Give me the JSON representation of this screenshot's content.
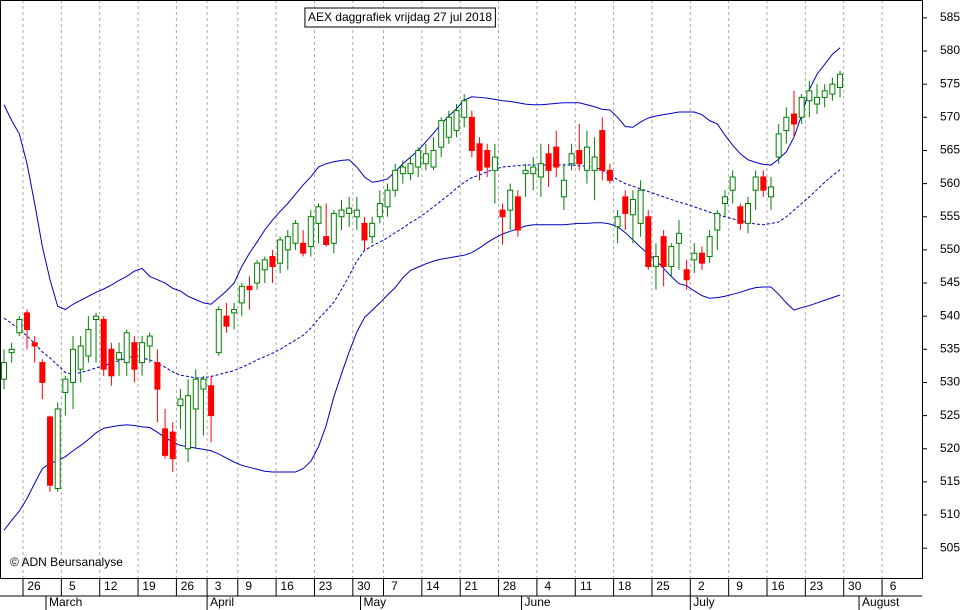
{
  "chart_data": {
    "type": "candlestick",
    "title": "AEX daggrafiek vrijdag 27 jul 2018",
    "copyright": "© ADN Beursanalyse",
    "categories": [
      null,
      null,
      null,
      "26",
      null,
      null,
      null,
      null,
      "5",
      null,
      null,
      null,
      null,
      "12",
      null,
      null,
      null,
      null,
      "19",
      null,
      null,
      null,
      null,
      "26",
      null,
      null,
      null,
      "3",
      null,
      null,
      null,
      "9",
      null,
      null,
      null,
      null,
      "16",
      null,
      null,
      null,
      null,
      "23",
      null,
      null,
      null,
      null,
      "30",
      null,
      null,
      null,
      "7",
      null,
      null,
      null,
      null,
      "14",
      null,
      null,
      null,
      null,
      "21",
      null,
      null,
      null,
      null,
      "28",
      null,
      null,
      null,
      null,
      "4",
      null,
      null,
      null,
      null,
      "11",
      null,
      null,
      null,
      null,
      "18",
      null,
      null,
      null,
      null,
      "25",
      null,
      null,
      null,
      null,
      "2",
      null,
      null,
      null,
      null,
      "9",
      null,
      null,
      null,
      null,
      "16",
      null,
      null,
      null,
      null,
      "23",
      null,
      null,
      null,
      null,
      "30",
      null,
      null,
      null,
      null,
      "6",
      null,
      null,
      null,
      null
    ],
    "months": [
      "March",
      "April",
      "May",
      "June",
      "July",
      "August"
    ],
    "open": [
      530.5,
      534.5,
      537.5,
      540.5,
      536,
      533,
      524.8,
      514,
      528.5,
      530,
      532,
      534,
      539.5,
      539.5,
      535,
      533.5,
      533,
      536,
      533,
      535.5,
      533,
      523,
      522.5,
      526.5,
      520,
      526,
      529,
      529.5,
      534.5,
      540,
      540.5,
      542,
      544.5,
      545,
      547,
      549,
      548,
      550,
      551,
      551,
      550.5,
      554,
      552,
      551,
      555,
      555.5,
      555,
      554,
      552,
      555,
      556.5,
      559,
      561.5,
      561.5,
      562.5,
      563,
      562.5,
      565.5,
      567,
      568,
      570,
      570,
      566,
      565,
      562,
      556,
      556,
      558,
      561.5,
      561.5,
      561,
      564.5,
      565.5,
      558,
      563,
      565,
      562,
      562,
      568,
      562,
      553.5,
      558,
      555.3,
      554,
      555,
      547.5,
      552,
      547.5,
      551,
      547,
      548.5,
      549.5,
      549,
      553,
      557,
      559,
      556.5,
      554,
      559,
      561,
      558,
      564,
      568,
      570.5,
      570,
      572.5,
      572,
      573,
      573.5,
      574.5,
      null,
      null,
      null,
      null,
      null,
      null,
      null,
      null,
      null,
      null
    ],
    "high": [
      535,
      536,
      540,
      541,
      537,
      533.5,
      525,
      527,
      531,
      537,
      537,
      540,
      540.5,
      540,
      536,
      536,
      538,
      537,
      537,
      537.5,
      535,
      526,
      524,
      529,
      530.5,
      532,
      531,
      531,
      541.5,
      542,
      542,
      545,
      546,
      548.5,
      549,
      550,
      552,
      553,
      554.5,
      553,
      556,
      557,
      557,
      556,
      557.5,
      558,
      558,
      555,
      555,
      559,
      560,
      563,
      563.5,
      564,
      565.5,
      566,
      567,
      570,
      571,
      572,
      573.5,
      571,
      567,
      566,
      566,
      557,
      560,
      559,
      563,
      564,
      566,
      566,
      568,
      563,
      566,
      569,
      568,
      567,
      570,
      563,
      556,
      559,
      559,
      560.5,
      556,
      551,
      553,
      551,
      554.5,
      548.5,
      551,
      550.5,
      553,
      556,
      559,
      562,
      557,
      558,
      562,
      562,
      561,
      569,
      571.5,
      574,
      573.5,
      575.5,
      575,
      575,
      576,
      577,
      null,
      null,
      null,
      null,
      null,
      null,
      null,
      null,
      null,
      null
    ],
    "low": [
      529,
      533,
      537,
      535,
      533,
      527.5,
      513.5,
      513.5,
      525,
      526,
      530,
      533,
      533,
      531,
      529.5,
      531,
      531,
      530,
      531,
      533,
      524,
      518.5,
      516.5,
      523,
      518,
      520,
      522,
      521,
      534,
      537.5,
      538,
      540,
      541,
      544,
      545,
      545,
      546.5,
      547,
      550,
      549,
      549,
      551,
      550.5,
      549.5,
      553,
      553.5,
      553,
      550,
      551,
      554,
      555,
      558,
      560,
      560.5,
      561,
      562,
      562,
      564,
      566,
      567,
      568.5,
      564,
      560.5,
      561,
      557,
      550.8,
      553,
      552,
      558,
      559,
      558,
      559.5,
      561,
      556,
      562,
      562,
      560,
      557.5,
      560.5,
      560,
      551,
      553,
      551,
      552,
      547,
      544,
      544.5,
      546,
      547,
      544,
      546.5,
      547,
      548,
      550,
      555,
      557,
      553,
      552.5,
      556,
      558,
      556,
      563,
      566,
      567,
      569,
      570,
      570.5,
      571.5,
      572.5,
      573,
      null,
      null,
      null,
      null,
      null,
      null,
      null,
      null,
      null,
      null
    ],
    "close": [
      533,
      535,
      539.5,
      538,
      535.5,
      530,
      514.5,
      526,
      530.5,
      535,
      535.5,
      538,
      540,
      532,
      531,
      534.5,
      537.5,
      532,
      536,
      537,
      529,
      519,
      518.5,
      527.5,
      528,
      530.5,
      530.5,
      525,
      541,
      538.5,
      541,
      544.5,
      544,
      548,
      548.5,
      547.5,
      551.5,
      552,
      554,
      549.5,
      555,
      556.5,
      550.8,
      555.5,
      556,
      556.3,
      556,
      551.5,
      554,
      557,
      559,
      562,
      562.5,
      563,
      565,
      564.5,
      565,
      569.5,
      570,
      571,
      572.5,
      565,
      562,
      562.5,
      564,
      555,
      559,
      553,
      562,
      562.5,
      563,
      562,
      562.5,
      560.5,
      564.5,
      563,
      565.5,
      564,
      562,
      560.5,
      555,
      555.5,
      557.6,
      559,
      547.5,
      549,
      547.5,
      550.5,
      552.5,
      545.5,
      549.5,
      548,
      552,
      555.5,
      558,
      561,
      554,
      557,
      561,
      559,
      559.5,
      567.5,
      570,
      569,
      573,
      574,
      573,
      574,
      575,
      576.5,
      null,
      null,
      null,
      null,
      null,
      null,
      null,
      null,
      null,
      null
    ],
    "up_color": "#008000",
    "down_color": "#ff0000",
    "bands": {
      "color": "#0000c0",
      "upper": [
        571.9,
        569.5,
        567.5,
        563,
        557,
        550.5,
        545.5,
        541.5,
        541,
        541.8,
        542.4,
        543,
        543.6,
        544.1,
        544.7,
        545.4,
        546,
        546.8,
        547.2,
        546,
        545.5,
        545,
        544.2,
        543.8,
        543,
        542.5,
        542,
        541.8,
        542.8,
        543.8,
        545,
        547.5,
        549.5,
        551.2,
        553,
        554.5,
        555.8,
        557,
        558.4,
        559.8,
        561,
        562.5,
        563,
        563.3,
        563.5,
        563.6,
        562.5,
        561,
        560.2,
        560.4,
        560.7,
        561.8,
        563,
        564,
        565,
        566.3,
        567.6,
        569,
        570.2,
        571.3,
        572.6,
        573.1,
        573,
        572.9,
        572.7,
        572.5,
        572.4,
        572.2,
        572,
        571.9,
        571.9,
        572,
        572.1,
        572.2,
        572.2,
        572.2,
        571.9,
        571.6,
        571.2,
        571.1,
        570,
        568.6,
        568.5,
        569.3,
        569.9,
        570.2,
        570.4,
        570.6,
        570.8,
        570.8,
        570.8,
        570.4,
        569.5,
        569,
        567.3,
        565.8,
        564.5,
        563.6,
        563.2,
        562.9,
        562.8,
        563.7,
        564.8,
        567,
        570.3,
        574.2,
        576.5,
        578,
        579.5,
        580.5,
        null,
        null,
        null,
        null,
        null,
        null,
        null,
        null,
        null,
        null
      ],
      "middle": [
        539.7,
        538.9,
        538,
        537,
        535.9,
        534.6,
        533.7,
        532.6,
        531.5,
        531.2,
        531.5,
        531.8,
        532.2,
        532.5,
        532.9,
        533.3,
        533.7,
        534,
        533.7,
        533.4,
        532.9,
        532.3,
        531.6,
        531.1,
        530.9,
        530.7,
        530.7,
        530.9,
        531.2,
        531.5,
        531.8,
        532.3,
        532.8,
        533.4,
        533.9,
        534.4,
        535,
        535.7,
        536.4,
        537.1,
        538.2,
        539.6,
        540.8,
        542.1,
        544,
        546.1,
        548.3,
        549.9,
        550.6,
        551.2,
        551.8,
        552.6,
        553.3,
        554.1,
        554.8,
        555.6,
        556.5,
        557.4,
        558.3,
        559.3,
        560.2,
        560.9,
        561.3,
        561.8,
        562.2,
        562.5,
        562.6,
        562.7,
        562.8,
        562.8,
        562.8,
        562.8,
        562.8,
        562.8,
        562.8,
        562.7,
        562.6,
        562.5,
        562,
        561.3,
        560.6,
        560,
        559.6,
        559.2,
        558.8,
        558.4,
        558,
        557.6,
        557.2,
        556.9,
        556.5,
        556.1,
        555.7,
        555.3,
        555,
        554.7,
        554.4,
        554.1,
        553.9,
        553.8,
        554,
        554.2,
        555,
        556,
        557,
        558,
        559.1,
        560.2,
        561.2,
        562.1,
        null,
        null,
        null,
        null,
        null,
        null,
        null,
        null,
        null,
        null
      ],
      "lower": [
        507.7,
        509.2,
        510.6,
        512.5,
        514.8,
        517,
        517.8,
        518.2,
        518.8,
        519.7,
        520.5,
        521.4,
        522.4,
        523.1,
        523.3,
        523.5,
        523.6,
        523.5,
        523.3,
        523.2,
        522.5,
        521.7,
        521,
        520.5,
        520.3,
        520.1,
        519.9,
        519.7,
        519.2,
        518.6,
        518,
        517.5,
        517.2,
        516.9,
        516.6,
        516.5,
        516.5,
        516.5,
        516.5,
        517,
        518.1,
        520.3,
        523.5,
        527.8,
        531.3,
        534.6,
        537.6,
        539.8,
        540.9,
        542,
        543.2,
        544.3,
        545.8,
        546.9,
        547.4,
        547.9,
        548.3,
        548.6,
        548.8,
        549,
        549.2,
        549.6,
        550.3,
        551.1,
        551.8,
        552.4,
        552.8,
        553.2,
        553.6,
        553.8,
        553.8,
        553.8,
        553.8,
        553.8,
        553.9,
        554,
        554,
        554.1,
        554.1,
        553.9,
        553.5,
        552.6,
        551.5,
        550.4,
        549.4,
        548.4,
        547.2,
        546,
        544.9,
        544.6,
        543.8,
        543.1,
        542.7,
        542.8,
        543,
        543.3,
        543.6,
        544,
        544.3,
        544.4,
        544.4,
        543.3,
        542,
        540.9,
        541.3,
        541.6,
        542,
        542.4,
        542.8,
        543.2,
        null,
        null,
        null,
        null,
        null,
        null,
        null,
        null,
        null,
        null
      ]
    },
    "ylim": [
      500.5,
      587.7
    ],
    "yticks": [
      505,
      510,
      515,
      520,
      525,
      530,
      535,
      540,
      545,
      550,
      555,
      560,
      565,
      570,
      575,
      580,
      585
    ],
    "x_grid": true
  }
}
